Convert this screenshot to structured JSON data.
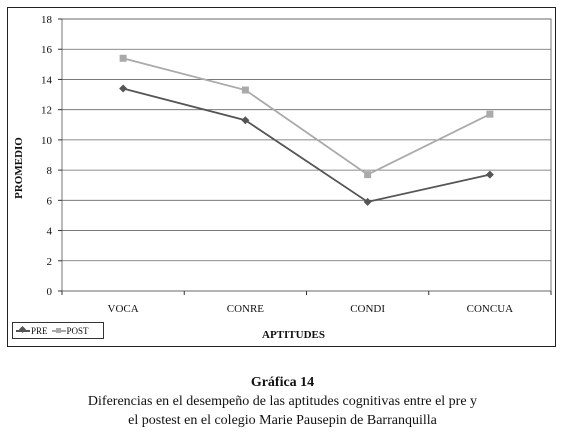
{
  "chart_data": {
    "type": "line",
    "categories": [
      "VOCA",
      "CONRE",
      "CONDI",
      "CONCUA"
    ],
    "series": [
      {
        "name": "PRE",
        "values": [
          13.4,
          11.3,
          5.9,
          7.7
        ],
        "color": "#555555",
        "marker": "diamond"
      },
      {
        "name": "POST",
        "values": [
          15.4,
          13.3,
          7.7,
          11.7
        ],
        "color": "#aaaaaa",
        "marker": "square"
      }
    ],
    "yticks": [
      "0",
      "2",
      "4",
      "6",
      "8",
      "10",
      "12",
      "14",
      "16",
      "18"
    ],
    "ylim": [
      0,
      18
    ],
    "xlabel": "APTITUDES",
    "ylabel": "PROMEDIO",
    "grid": true,
    "legend_position": "bottom-left"
  },
  "caption": {
    "title": "Gráfica 14",
    "line1": "Diferencias en el desempeño de las aptitudes cognitivas entre el pre y",
    "line2": "el postest en el colegio Marie Pausepin de Barranquilla"
  }
}
